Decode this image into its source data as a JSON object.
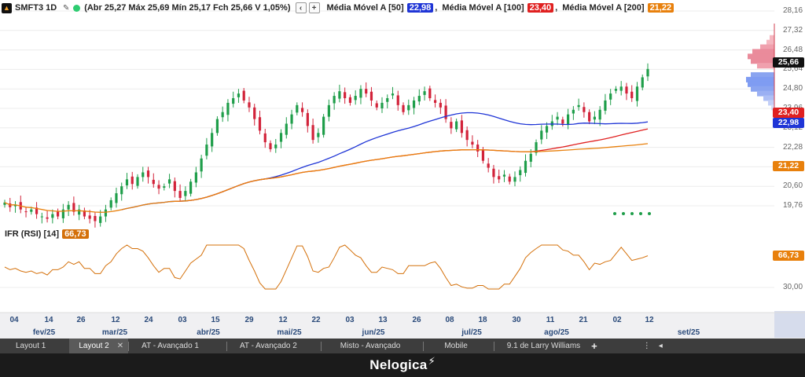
{
  "header": {
    "symbol": "SMFT3 1D",
    "ohlc": "(Abr 25,27 Máx 25,69 Mín 25,17 Fch 25,66 V 1,05%)",
    "moving_averages": [
      {
        "label": "Média Móvel A [50]",
        "value": "22,98",
        "color": "#1f35d6"
      },
      {
        "label": "Média Móvel A [100]",
        "value": "23,40",
        "color": "#e02020"
      },
      {
        "label": "Média Móvel A [200]",
        "value": "21,22",
        "color": "#e8800c"
      }
    ]
  },
  "indicator": {
    "label": "IFR (RSI) [14]",
    "value": "66,73"
  },
  "price_axis": {
    "ticks": [
      "28,16",
      "27,32",
      "26,48",
      "25,64",
      "24,80",
      "23,96",
      "23,12",
      "22,28",
      "21,44",
      "20,60",
      "19,76"
    ],
    "rsi_tick": "30,00",
    "last_price": "25,66",
    "tags": [
      {
        "value": "25,66",
        "color": "#111111"
      },
      {
        "value": "23,40",
        "color": "#e02020"
      },
      {
        "value": "22,98",
        "color": "#1f35d6"
      },
      {
        "value": "21,22",
        "color": "#e8800c"
      },
      {
        "value": "66,73",
        "color": "#e8800c"
      }
    ]
  },
  "time_axis": {
    "days": [
      "04",
      "14",
      "26",
      "12",
      "24",
      "03",
      "15",
      "29",
      "12",
      "22",
      "03",
      "13",
      "26",
      "08",
      "18",
      "30",
      "11",
      "21",
      "02",
      "12"
    ],
    "months": [
      "fev/25",
      "mar/25",
      "abr/25",
      "mai/25",
      "jun/25",
      "jul/25",
      "ago/25",
      "set/25"
    ]
  },
  "tabs": [
    {
      "label": "Layout 1",
      "active": false
    },
    {
      "label": "Layout 2",
      "active": true,
      "close": "✕"
    },
    {
      "label": "AT - Avançado 1",
      "active": false
    },
    {
      "label": "AT - Avançado 2",
      "active": false
    },
    {
      "label": "Misto - Avançado",
      "active": false
    },
    {
      "label": "Mobile",
      "active": false
    },
    {
      "label": "9.1 de Larry Williams",
      "active": false
    }
  ],
  "tab_controls": {
    "add": "+",
    "more": "⋮",
    "collapse": "◂"
  },
  "footer": {
    "brand": "Nelogica"
  },
  "chart_data": {
    "type": "candlestick",
    "symbol": "SMFT3",
    "timeframe": "1D",
    "y_range": [
      19.3,
      28.4
    ],
    "last": {
      "open": 25.27,
      "high": 25.69,
      "low": 25.17,
      "close": 25.66,
      "change_pct": 1.05
    },
    "closes_approx": [
      19.9,
      19.7,
      19.8,
      19.6,
      19.5,
      19.6,
      19.4,
      19.3,
      19.2,
      19.4,
      19.3,
      19.6,
      19.8,
      19.5,
      19.6,
      19.3,
      19.2,
      19.1,
      19.3,
      19.6,
      20.0,
      20.3,
      20.6,
      20.9,
      20.7,
      21.0,
      21.2,
      21.0,
      20.7,
      20.5,
      20.6,
      20.9,
      20.4,
      20.1,
      20.4,
      20.8,
      21.2,
      21.8,
      22.4,
      22.9,
      23.5,
      23.8,
      24.2,
      24.4,
      24.6,
      24.3,
      24.0,
      23.5,
      23.0,
      22.5,
      22.2,
      22.4,
      22.9,
      23.3,
      23.7,
      24.1,
      23.8,
      23.2,
      22.6,
      22.9,
      23.6,
      24.1,
      24.5,
      24.7,
      24.4,
      24.2,
      24.5,
      24.8,
      24.6,
      24.3,
      24.0,
      24.2,
      24.4,
      24.6,
      24.1,
      23.8,
      24.1,
      24.3,
      24.5,
      24.7,
      24.4,
      24.2,
      24.0,
      23.5,
      23.1,
      23.4,
      22.9,
      22.6,
      22.4,
      22.1,
      21.7,
      21.4,
      21.0,
      20.9,
      21.1,
      20.8,
      21.0,
      21.3,
      21.7,
      22.0,
      22.5,
      23.0,
      23.2,
      23.4,
      23.6,
      23.3,
      23.7,
      23.9,
      24.1,
      23.8,
      23.4,
      23.6,
      23.9,
      24.3,
      24.6,
      24.8,
      24.9,
      24.6,
      24.4,
      24.9,
      25.3,
      25.66
    ],
    "moving_averages": [
      {
        "name": "Média Móvel A [50]",
        "last": 22.98
      },
      {
        "name": "Média Móvel A [100]",
        "last": 23.4
      },
      {
        "name": "Média Móvel A [200]",
        "last": 21.22
      }
    ],
    "rsi": {
      "period": 14,
      "last": 66.73,
      "reference_tick": 30.0
    },
    "volume_profile": "right-side price histogram"
  }
}
